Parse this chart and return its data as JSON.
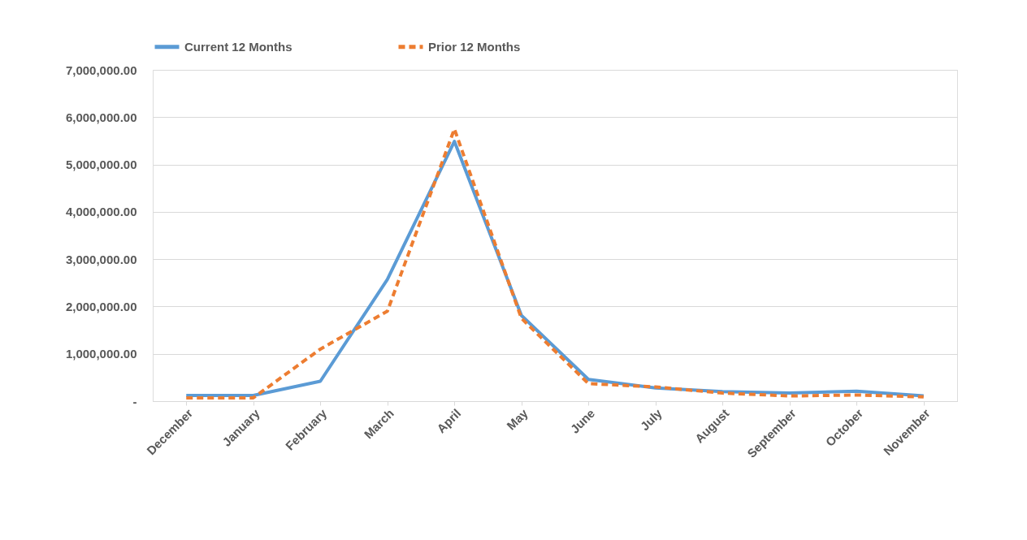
{
  "chart_data": {
    "type": "line",
    "categories": [
      "December",
      "January",
      "February",
      "March",
      "April",
      "May",
      "June",
      "July",
      "August",
      "September",
      "October",
      "November"
    ],
    "series": [
      {
        "name": "Current 12 Months",
        "color": "#5b9bd5",
        "line_style": "solid",
        "values": [
          120000,
          120000,
          420000,
          2570000,
          5490000,
          1810000,
          460000,
          280000,
          200000,
          170000,
          210000,
          110000
        ]
      },
      {
        "name": "Prior 12 Months",
        "color": "#ed7d31",
        "line_style": "dashed",
        "values": [
          70000,
          70000,
          1100000,
          1900000,
          5750000,
          1750000,
          370000,
          300000,
          170000,
          110000,
          130000,
          90000
        ]
      }
    ],
    "ylim": [
      0,
      7000000
    ],
    "yticks": [
      {
        "value": 0,
        "label": "-"
      },
      {
        "value": 1000000,
        "label": "1,000,000.00"
      },
      {
        "value": 2000000,
        "label": "2,000,000.00"
      },
      {
        "value": 3000000,
        "label": "3,000,000.00"
      },
      {
        "value": 4000000,
        "label": "4,000,000.00"
      },
      {
        "value": 5000000,
        "label": "5,000,000.00"
      },
      {
        "value": 6000000,
        "label": "6,000,000.00"
      },
      {
        "value": 7000000,
        "label": "7,000,000.00"
      }
    ],
    "grid": "y",
    "legend": "top",
    "marker": "none"
  }
}
